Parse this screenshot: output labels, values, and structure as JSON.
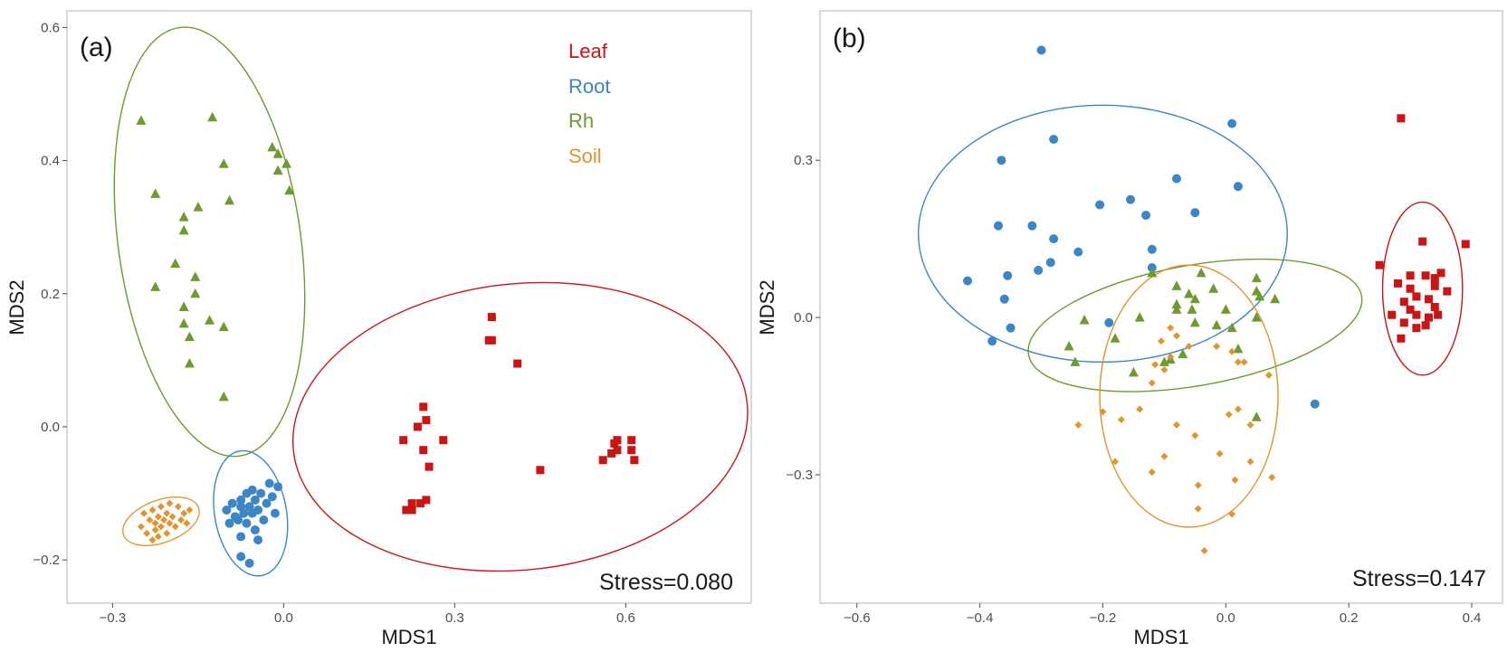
{
  "colors": {
    "Leaf": "#cc1414",
    "Root": "#3a86c8",
    "Rh": "#6e9a2e",
    "Soil": "#e0962e"
  },
  "chart_data": [
    {
      "type": "scatter",
      "panel": "(a)",
      "xlabel": "MDS1",
      "ylabel": "MDS2",
      "xlim": [
        -0.38,
        0.82
      ],
      "ylim": [
        -0.265,
        0.625
      ],
      "xticks": [
        -0.3,
        0.0,
        0.3,
        0.6
      ],
      "xtick_labels": [
        "−0.3",
        "0.0",
        "0.3",
        "0.6"
      ],
      "yticks": [
        -0.2,
        0.0,
        0.2,
        0.4,
        0.6
      ],
      "ytick_labels": [
        "−0.2",
        "0.0",
        "0.2",
        "0.4",
        "0.6"
      ],
      "legend": [
        "Leaf",
        "Root",
        "Rh",
        "Soil"
      ],
      "annotation": "Stress=0.080",
      "series": [
        {
          "name": "Rh",
          "shape": "triangle",
          "points": [
            [
              -0.25,
              0.46
            ],
            [
              -0.125,
              0.465
            ],
            [
              -0.105,
              0.395
            ],
            [
              -0.02,
              0.42
            ],
            [
              -0.01,
              0.41
            ],
            [
              0.005,
              0.395
            ],
            [
              -0.01,
              0.385
            ],
            [
              0.01,
              0.355
            ],
            [
              -0.225,
              0.35
            ],
            [
              -0.095,
              0.34
            ],
            [
              -0.15,
              0.33
            ],
            [
              -0.175,
              0.315
            ],
            [
              -0.175,
              0.295
            ],
            [
              -0.19,
              0.245
            ],
            [
              -0.155,
              0.225
            ],
            [
              -0.225,
              0.21
            ],
            [
              -0.155,
              0.2
            ],
            [
              -0.175,
              0.18
            ],
            [
              -0.13,
              0.16
            ],
            [
              -0.175,
              0.155
            ],
            [
              -0.105,
              0.15
            ],
            [
              -0.165,
              0.135
            ],
            [
              -0.165,
              0.095
            ],
            [
              -0.105,
              0.045
            ]
          ]
        },
        {
          "name": "Soil",
          "shape": "diamond",
          "points": [
            [
              -0.25,
              -0.15
            ],
            [
              -0.245,
              -0.13
            ],
            [
              -0.24,
              -0.16
            ],
            [
              -0.235,
              -0.14
            ],
            [
              -0.23,
              -0.125
            ],
            [
              -0.225,
              -0.145
            ],
            [
              -0.225,
              -0.155
            ],
            [
              -0.22,
              -0.135
            ],
            [
              -0.22,
              -0.165
            ],
            [
              -0.215,
              -0.12
            ],
            [
              -0.215,
              -0.15
            ],
            [
              -0.21,
              -0.14
            ],
            [
              -0.205,
              -0.13
            ],
            [
              -0.205,
              -0.16
            ],
            [
              -0.2,
              -0.115
            ],
            [
              -0.2,
              -0.145
            ],
            [
              -0.195,
              -0.135
            ],
            [
              -0.19,
              -0.15
            ],
            [
              -0.185,
              -0.12
            ],
            [
              -0.18,
              -0.14
            ],
            [
              -0.175,
              -0.13
            ],
            [
              -0.17,
              -0.145
            ],
            [
              -0.165,
              -0.125
            ],
            [
              -0.23,
              -0.17
            ]
          ]
        },
        {
          "name": "Root",
          "shape": "circle",
          "points": [
            [
              -0.1,
              -0.125
            ],
            [
              -0.095,
              -0.145
            ],
            [
              -0.09,
              -0.115
            ],
            [
              -0.085,
              -0.135
            ],
            [
              -0.08,
              -0.14
            ],
            [
              -0.075,
              -0.11
            ],
            [
              -0.075,
              -0.12
            ],
            [
              -0.07,
              -0.13
            ],
            [
              -0.065,
              -0.1
            ],
            [
              -0.065,
              -0.145
            ],
            [
              -0.06,
              -0.12
            ],
            [
              -0.055,
              -0.095
            ],
            [
              -0.055,
              -0.13
            ],
            [
              -0.05,
              -0.11
            ],
            [
              -0.05,
              -0.155
            ],
            [
              -0.045,
              -0.125
            ],
            [
              -0.04,
              -0.1
            ],
            [
              -0.035,
              -0.14
            ],
            [
              -0.03,
              -0.115
            ],
            [
              -0.025,
              -0.085
            ],
            [
              -0.02,
              -0.105
            ],
            [
              -0.015,
              -0.13
            ],
            [
              -0.01,
              -0.09
            ],
            [
              -0.075,
              -0.165
            ],
            [
              -0.045,
              -0.17
            ],
            [
              -0.075,
              -0.195
            ],
            [
              -0.06,
              -0.205
            ]
          ]
        },
        {
          "name": "Leaf",
          "shape": "square",
          "points": [
            [
              0.365,
              0.165
            ],
            [
              0.36,
              0.13
            ],
            [
              0.365,
              0.13
            ],
            [
              0.41,
              0.095
            ],
            [
              0.245,
              0.03
            ],
            [
              0.25,
              0.01
            ],
            [
              0.235,
              0.0
            ],
            [
              0.28,
              -0.02
            ],
            [
              0.21,
              -0.02
            ],
            [
              0.245,
              -0.035
            ],
            [
              0.255,
              -0.06
            ],
            [
              0.45,
              -0.065
            ],
            [
              0.56,
              -0.05
            ],
            [
              0.575,
              -0.04
            ],
            [
              0.585,
              -0.02
            ],
            [
              0.585,
              -0.035
            ],
            [
              0.58,
              -0.025
            ],
            [
              0.61,
              -0.02
            ],
            [
              0.61,
              -0.035
            ],
            [
              0.615,
              -0.05
            ],
            [
              0.25,
              -0.11
            ],
            [
              0.24,
              -0.115
            ],
            [
              0.225,
              -0.115
            ],
            [
              0.225,
              -0.125
            ],
            [
              0.215,
              -0.125
            ]
          ]
        }
      ],
      "ellipses": [
        {
          "name": "Rh",
          "center": [
            -0.13,
            0.278
          ],
          "radii": [
            0.16,
            0.325
          ],
          "rotation_deg": 8
        },
        {
          "name": "Soil",
          "center": [
            -0.215,
            -0.142
          ],
          "radii": [
            0.07,
            0.032
          ],
          "rotation_deg": 20
        },
        {
          "name": "Root",
          "center": [
            -0.058,
            -0.13
          ],
          "radii": [
            0.063,
            0.095
          ],
          "rotation_deg": 10
        },
        {
          "name": "Leaf",
          "center": [
            0.415,
            -0.0
          ],
          "radii": [
            0.4,
            0.215
          ],
          "rotation_deg": 6
        }
      ]
    },
    {
      "type": "scatter",
      "panel": "(b)",
      "xlabel": "MDS1",
      "ylabel": "MDS2",
      "xlim": [
        -0.66,
        0.45
      ],
      "ylim": [
        -0.545,
        0.585
      ],
      "xticks": [
        -0.6,
        -0.4,
        -0.2,
        0.0,
        0.2,
        0.4
      ],
      "xtick_labels": [
        "−0.6",
        "−0.4",
        "−0.2",
        "0.0",
        "0.2",
        "0.4"
      ],
      "yticks": [
        -0.3,
        0.0,
        0.3
      ],
      "ytick_labels": [
        "−0.3",
        "0.0",
        "0.3"
      ],
      "annotation": "Stress=0.147",
      "series": [
        {
          "name": "Root",
          "shape": "circle",
          "points": [
            [
              -0.3,
              0.51
            ],
            [
              0.01,
              0.37
            ],
            [
              -0.28,
              0.34
            ],
            [
              -0.365,
              0.3
            ],
            [
              -0.08,
              0.265
            ],
            [
              0.02,
              0.25
            ],
            [
              -0.155,
              0.225
            ],
            [
              -0.205,
              0.215
            ],
            [
              -0.05,
              0.2
            ],
            [
              -0.13,
              0.195
            ],
            [
              -0.37,
              0.175
            ],
            [
              -0.315,
              0.175
            ],
            [
              -0.28,
              0.15
            ],
            [
              -0.24,
              0.125
            ],
            [
              -0.12,
              0.13
            ],
            [
              -0.285,
              0.105
            ],
            [
              -0.305,
              0.09
            ],
            [
              -0.355,
              0.08
            ],
            [
              -0.12,
              0.095
            ],
            [
              -0.42,
              0.07
            ],
            [
              -0.36,
              0.035
            ],
            [
              -0.19,
              -0.01
            ],
            [
              -0.35,
              -0.02
            ],
            [
              -0.38,
              -0.045
            ],
            [
              0.145,
              -0.165
            ]
          ]
        },
        {
          "name": "Rh",
          "shape": "triangle",
          "points": [
            [
              -0.12,
              0.085
            ],
            [
              -0.04,
              0.085
            ],
            [
              -0.08,
              0.06
            ],
            [
              0.05,
              0.075
            ],
            [
              0.05,
              0.05
            ],
            [
              -0.02,
              0.055
            ],
            [
              0.055,
              0.04
            ],
            [
              -0.06,
              0.045
            ],
            [
              -0.05,
              0.035
            ],
            [
              0.08,
              0.035
            ],
            [
              -0.08,
              0.025
            ],
            [
              -0.08,
              0.015
            ],
            [
              -0.055,
              0.015
            ],
            [
              0.0,
              0.015
            ],
            [
              -0.14,
              -0.0
            ],
            [
              -0.23,
              -0.005
            ],
            [
              0.05,
              0.0
            ],
            [
              -0.05,
              -0.01
            ],
            [
              -0.015,
              -0.015
            ],
            [
              0.01,
              -0.02
            ],
            [
              -0.18,
              -0.04
            ],
            [
              -0.255,
              -0.055
            ],
            [
              -0.07,
              -0.07
            ],
            [
              -0.09,
              -0.08
            ],
            [
              0.02,
              -0.06
            ],
            [
              -0.245,
              -0.085
            ],
            [
              -0.15,
              -0.105
            ],
            [
              -0.1,
              -0.085
            ],
            [
              0.05,
              -0.19
            ]
          ]
        },
        {
          "name": "Soil",
          "shape": "diamond",
          "points": [
            [
              -0.09,
              -0.02
            ],
            [
              -0.08,
              -0.035
            ],
            [
              -0.105,
              -0.045
            ],
            [
              -0.06,
              -0.055
            ],
            [
              -0.015,
              -0.055
            ],
            [
              0.01,
              -0.065
            ],
            [
              -0.09,
              -0.075
            ],
            [
              0.02,
              -0.085
            ],
            [
              0.03,
              -0.085
            ],
            [
              -0.115,
              -0.09
            ],
            [
              -0.1,
              -0.1
            ],
            [
              0.07,
              -0.11
            ],
            [
              -0.12,
              -0.125
            ],
            [
              -0.2,
              -0.18
            ],
            [
              -0.14,
              -0.175
            ],
            [
              -0.17,
              -0.195
            ],
            [
              0.02,
              -0.175
            ],
            [
              0.04,
              -0.205
            ],
            [
              0.005,
              -0.185
            ],
            [
              -0.24,
              -0.205
            ],
            [
              -0.08,
              -0.205
            ],
            [
              -0.05,
              -0.225
            ],
            [
              -0.1,
              -0.265
            ],
            [
              -0.18,
              -0.275
            ],
            [
              -0.01,
              -0.26
            ],
            [
              0.04,
              -0.275
            ],
            [
              -0.12,
              -0.295
            ],
            [
              0.075,
              -0.305
            ],
            [
              0.015,
              -0.31
            ],
            [
              -0.045,
              -0.32
            ],
            [
              -0.045,
              -0.365
            ],
            [
              0.01,
              -0.375
            ],
            [
              -0.035,
              -0.445
            ]
          ]
        },
        {
          "name": "Leaf",
          "shape": "square",
          "points": [
            [
              0.285,
              0.38
            ],
            [
              0.39,
              0.14
            ],
            [
              0.32,
              0.145
            ],
            [
              0.25,
              0.1
            ],
            [
              0.3,
              0.08
            ],
            [
              0.325,
              0.08
            ],
            [
              0.35,
              0.085
            ],
            [
              0.34,
              0.075
            ],
            [
              0.28,
              0.065
            ],
            [
              0.3,
              0.055
            ],
            [
              0.34,
              0.06
            ],
            [
              0.36,
              0.05
            ],
            [
              0.31,
              0.04
            ],
            [
              0.29,
              0.03
            ],
            [
              0.33,
              0.035
            ],
            [
              0.3,
              0.015
            ],
            [
              0.34,
              0.02
            ],
            [
              0.31,
              0.005
            ],
            [
              0.27,
              0.005
            ],
            [
              0.345,
              0.005
            ],
            [
              0.33,
              -0.0
            ],
            [
              0.29,
              -0.01
            ],
            [
              0.325,
              -0.015
            ],
            [
              0.31,
              -0.02
            ],
            [
              0.285,
              -0.04
            ]
          ]
        }
      ],
      "ellipses": [
        {
          "name": "Root",
          "center": [
            -0.2,
            0.16
          ],
          "radii": [
            0.3,
            0.245
          ],
          "rotation_deg": 0
        },
        {
          "name": "Rh",
          "center": [
            -0.05,
            -0.015
          ],
          "radii": [
            0.275,
            0.115
          ],
          "rotation_deg": 10
        },
        {
          "name": "Soil",
          "center": [
            -0.06,
            -0.15
          ],
          "radii": [
            0.145,
            0.25
          ],
          "rotation_deg": 0
        },
        {
          "name": "Leaf",
          "center": [
            0.32,
            0.055
          ],
          "radii": [
            0.065,
            0.165
          ],
          "rotation_deg": 0
        }
      ]
    }
  ]
}
